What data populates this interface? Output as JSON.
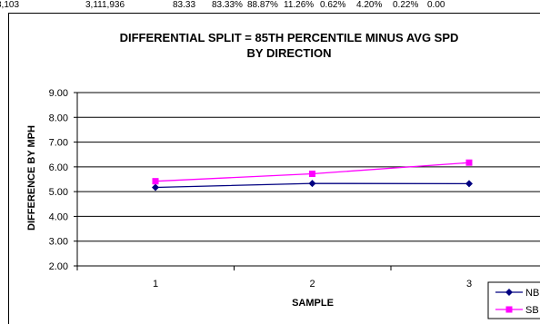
{
  "top_strip": [
    "3,103",
    "3,111,936",
    "83.33",
    "83.33%",
    "88.87%",
    "11.26%",
    "0.62%",
    "4.20%",
    "0.22%",
    "0.00"
  ],
  "chart_data": {
    "type": "line",
    "title_line1": "DIFFERENTIAL SPLIT = 85TH PERCENTILE MINUS AVG SPD",
    "title_line2": "BY DIRECTION",
    "xlabel": "SAMPLE",
    "ylabel": "DIFFERENCE BY MPH",
    "categories": [
      "1",
      "2",
      "3"
    ],
    "ylim": [
      2,
      9
    ],
    "yticks": [
      "2.00",
      "3.00",
      "4.00",
      "5.00",
      "6.00",
      "7.00",
      "8.00",
      "9.00"
    ],
    "grid": true,
    "legend_position": "bottom-right",
    "series": [
      {
        "name": "NB",
        "color": "#000080",
        "marker": "diamond",
        "values": [
          5.17,
          5.33,
          5.32
        ]
      },
      {
        "name": "SB",
        "color": "#ff00ff",
        "marker": "square",
        "values": [
          5.42,
          5.72,
          6.17
        ]
      }
    ]
  }
}
